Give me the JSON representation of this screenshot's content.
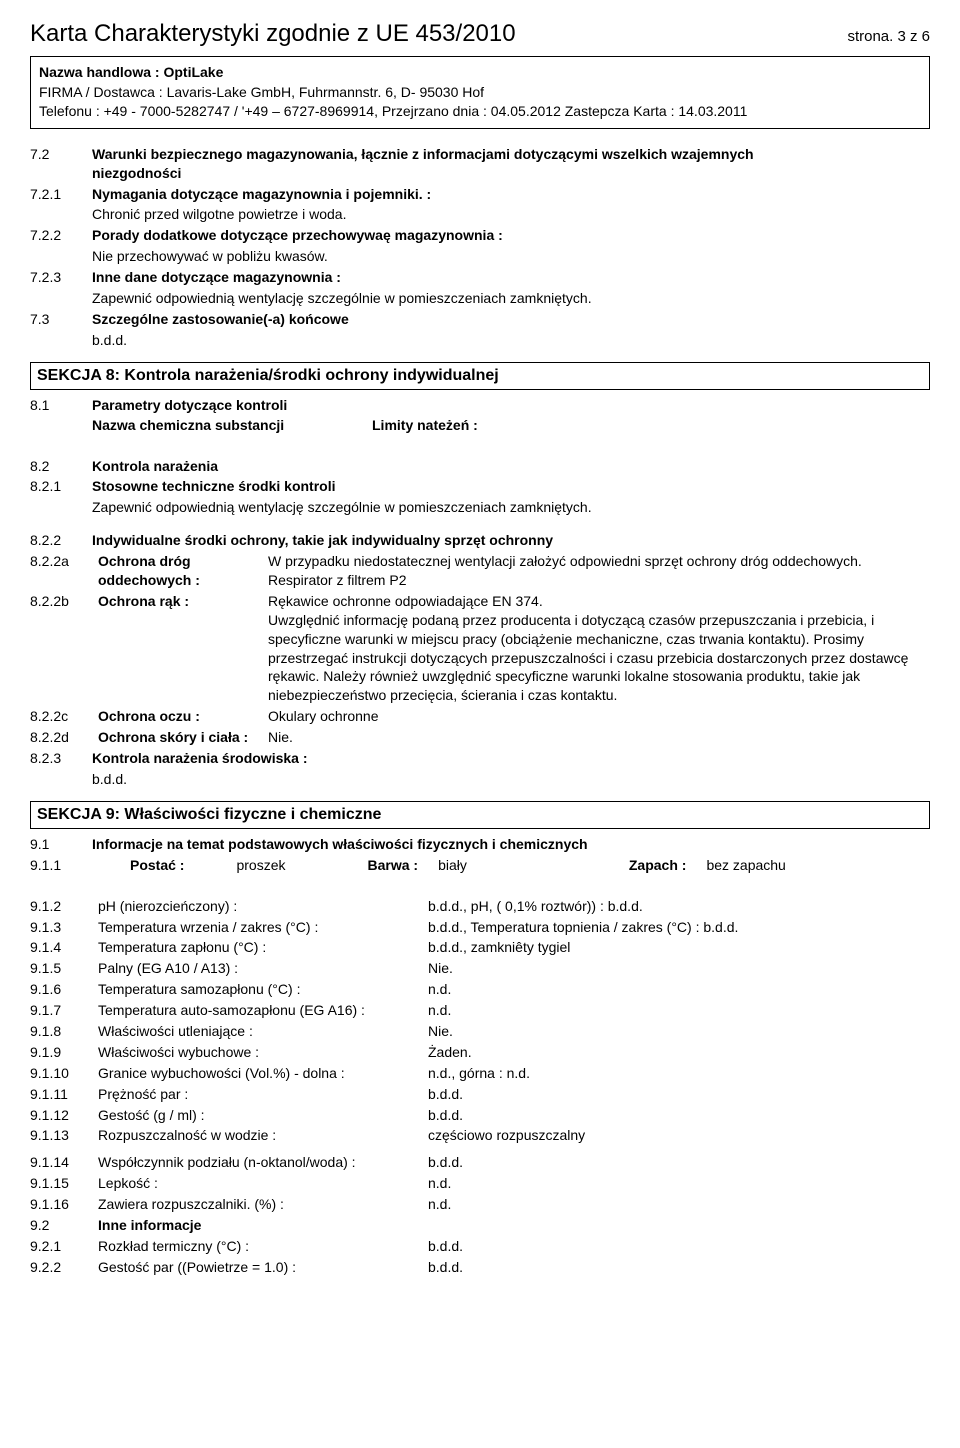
{
  "header": {
    "doc_title": "Karta Charakterystyki  zgodnie z UE 453/2010",
    "page_label": "strona. 3 z 6",
    "trade_name_label": "Nazwa handlowa : OptiLake",
    "supplier": "FIRMA / Dostawca : Lavaris-Lake GmbH, Fuhrmannstr. 6, D- 95030 Hof",
    "phone": "Telefonu : +49 - 7000-5282747 / '+49 – 6727-8969914, Przejrzano dnia : 04.05.2012 Zastepcza Karta  : 14.03.2011"
  },
  "s7": {
    "n72": "7.2",
    "t72a": "Warunki bezpiecznego magazynowania, łącznie z informacjami dotyczącymi wszelkich wzajemnych",
    "t72b": "niezgodności",
    "n721": "7.2.1",
    "t721": "Nymagania dotyczące magazynownia i pojemniki. :",
    "t721b": "Chronić przed wilgotne powietrze i woda.",
    "n722": "7.2.2",
    "t722": "Porady dodatkowe dotyczące przechowywaę magazynownia :",
    "t722b": "Nie przechowywać w pobliżu kwasów.",
    "n723": "7.2.3",
    "t723": "Inne dane dotyczące magazynownia :",
    "t723b": "Zapewnić odpowiednią wentylację szczególnie w pomieszczeniach zamkniętych.",
    "n73": "7.3",
    "t73": "Szczególne zastosowanie(-a) końcowe",
    "t73b": "b.d.d."
  },
  "s8": {
    "title": "SEKCJA 8: Kontrola narażenia/środki ochrony indywidualnej",
    "n81": "8.1",
    "t81": "Parametry dotyczące kontroli",
    "t81_name": "Nazwa chemiczna substancji",
    "t81_limits": "Limity nateżeń :",
    "n82": "8.2",
    "t82": "Kontrola narażenia",
    "n821": "8.2.1",
    "t821": "Stosowne techniczne środki kontroli",
    "t821b": "Zapewnić odpowiednią wentylację szczególnie w pomieszczeniach zamkniętych.",
    "n822": "8.2.2",
    "t822": "Indywidualne środki ochrony, takie jak indywidualny sprzęt ochronny",
    "n822a": "8.2.2a",
    "l822a": "Ochrona dróg oddechowych :",
    "v822a": "W przypadku niedostatecznej wentylacji założyć odpowiedni sprzęt ochrony dróg oddechowych. Respirator z filtrem P2",
    "n822b": "8.2.2b",
    "l822b": "Ochrona rąk :",
    "v822b": "Rękawice ochronne odpowiadające EN 374.",
    "v822b2": "Uwzględnić informację podaną przez producenta i dotyczącą czasów przepuszczania i przebicia, i specyficzne warunki w miejscu pracy (obciążenie mechaniczne, czas trwania kontaktu). Prosimy przestrzegać instrukcji dotyczących przepuszczalności i czasu przebicia dostarczonych przez dostawcę rękawic. Należy również uwzględnić specyficzne warunki lokalne stosowania produktu, takie jak niebezpieczeństwo przecięcia, ścierania i czas kontaktu.",
    "n822c": "8.2.2c",
    "l822c": "Ochrona oczu :",
    "v822c": "Okulary ochronne",
    "n822d": "8.2.2d",
    "l822d": "Ochrona skóry i ciała :",
    "v822d": "Nie.",
    "n823": "8.2.3",
    "t823": "Kontrola narażenia środowiska :",
    "t823b": "b.d.d."
  },
  "s9": {
    "title": "SEKCJA 9: Właściwości fizyczne i chemiczne",
    "n91": "9.1",
    "t91": "Informacje na temat podstawowych właściwości fizycznych i chemicznych",
    "n911": "9.1.1",
    "postac_l": "Postać :",
    "postac_v": "proszek",
    "barwa_l": "Barwa :",
    "barwa_v": "biały",
    "zapach_l": "Zapach :",
    "zapach_v": "bez zapachu",
    "rows": [
      {
        "n": "9.1.2",
        "l": "pH (nierozcieńczony) :",
        "v": "b.d.d., pH, ( 0,1% roztwór)) : b.d.d."
      },
      {
        "n": "9.1.3",
        "l": "Temperatura wrzenia / zakres (°C) :",
        "v": "b.d.d., Temperatura topnienia / zakres (°C) : b.d.d."
      },
      {
        "n": "9.1.4",
        "l": "Temperatura zapłonu (°C) :",
        "v": "b.d.d., zamkniêty tygiel"
      },
      {
        "n": "9.1.5",
        "l": "Palny (EG A10 / A13) :",
        "v": "Nie."
      },
      {
        "n": "9.1.6",
        "l": "Temperatura samozapłonu (°C) :",
        "v": "n.d."
      },
      {
        "n": "9.1.7",
        "l": "Temperatura auto-samozapłonu (EG A16) :",
        "v": "n.d."
      },
      {
        "n": "9.1.8",
        "l": "Właściwości utleniające :",
        "v": "Nie."
      },
      {
        "n": "9.1.9",
        "l": "Właściwości wybuchowe :",
        "v": "Żaden."
      },
      {
        "n": "9.1.10",
        "l": "Granice wybuchowości (Vol.%) - dolna :",
        "v": "n.d., górna : n.d."
      },
      {
        "n": "9.1.11",
        "l": "Prężność par :",
        "v": "b.d.d."
      },
      {
        "n": "9.1.12",
        "l": "Gestość  (g / ml) :",
        "v": "b.d.d."
      },
      {
        "n": "9.1.13",
        "l": "Rozpuszczalność w wodzie :",
        "v": "częściowo rozpuszczalny"
      }
    ],
    "rows2": [
      {
        "n": "9.1.14",
        "l": "Współczynnik podziału (n-oktanol/woda) :",
        "v": "b.d.d."
      },
      {
        "n": "9.1.15",
        "l": "Lepkość :",
        "v": "n.d."
      },
      {
        "n": "9.1.16",
        "l": "Zawiera rozpuszczalniki. (%) :",
        "v": "n.d."
      }
    ],
    "n92": "9.2",
    "t92": "Inne informacje",
    "rows3": [
      {
        "n": "9.2.1",
        "l": "Rozkład termiczny (°C) :",
        "v": "b.d.d."
      },
      {
        "n": "9.2.2",
        "l": "Gestość par ((Powietrze = 1.0) :",
        "v": "b.d.d."
      }
    ]
  }
}
